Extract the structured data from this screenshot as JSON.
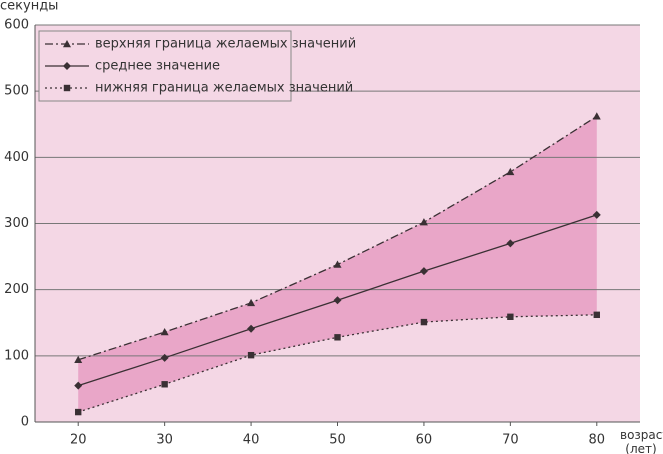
{
  "chart_data": {
    "type": "line",
    "y_label": "секунды",
    "x_label": "возраст (лет)",
    "x": [
      20,
      30,
      40,
      50,
      60,
      70,
      80
    ],
    "xlim": [
      15,
      85
    ],
    "xticks": [
      20,
      30,
      40,
      50,
      60,
      70,
      80
    ],
    "ylim": [
      0,
      600
    ],
    "yticks": [
      0,
      100,
      200,
      300,
      400,
      500,
      600
    ],
    "grid": true,
    "legend": "upper left",
    "background": "#f4d7e5",
    "band_color": "#e9a6c8",
    "series": [
      {
        "name": "верхняя граница желаемых значений",
        "color": "#3a3034",
        "marker": "triangle",
        "linestyle": "dashdot",
        "values": [
          94,
          136,
          180,
          238,
          302,
          378,
          462
        ]
      },
      {
        "name": "среднее значение",
        "color": "#3a3034",
        "marker": "diamond",
        "linestyle": "solid",
        "values": [
          55,
          97,
          141,
          184,
          228,
          270,
          313
        ]
      },
      {
        "name": "нижняя граница желаемых значений",
        "color": "#3a3034",
        "marker": "square",
        "linestyle": "dotted",
        "values": [
          15,
          57,
          101,
          128,
          151,
          159,
          162
        ]
      }
    ]
  }
}
